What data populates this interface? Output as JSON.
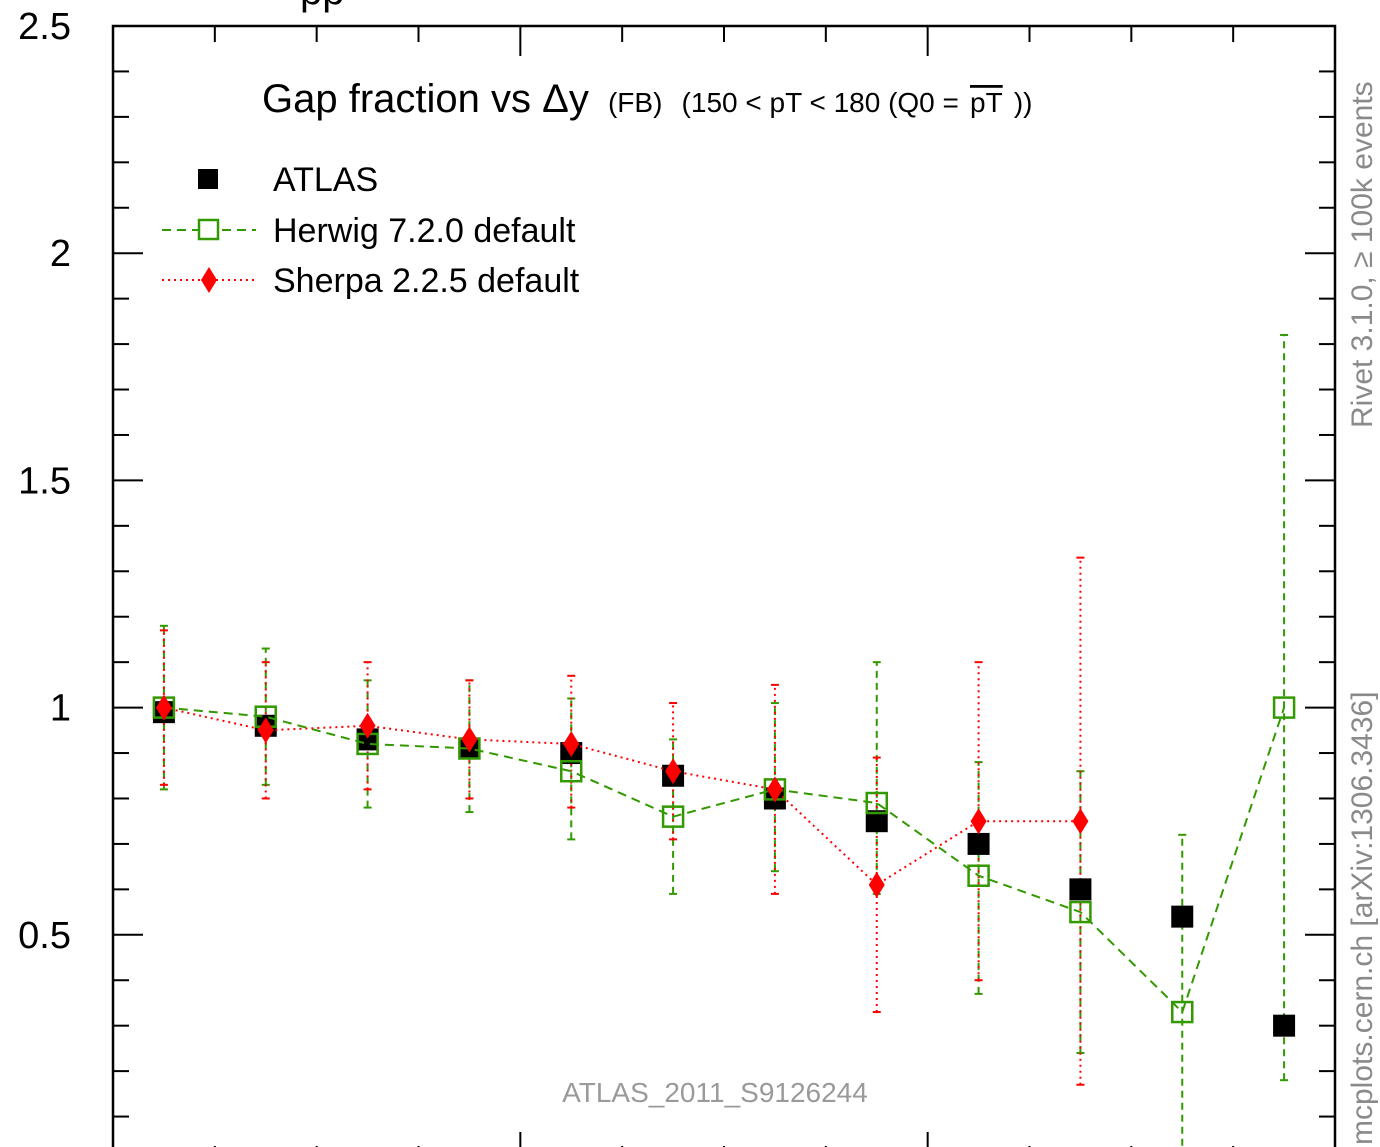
{
  "chart_data": {
    "type": "scatter",
    "title_main": "Gap fraction vs",
    "title_delta": "Δy",
    "title_fb": "(FB)",
    "title_range_open": "(150 < pT < 180 (Q0 =",
    "title_pt": "pT",
    "title_range_close": "))",
    "ylim": [
      0,
      2.5
    ],
    "xlim": [
      0,
      12
    ],
    "y_ticks": [
      0.5,
      1,
      1.5,
      2,
      2.5
    ],
    "y_tick_labels": [
      "0.5",
      "1",
      "1.5",
      "2",
      "2.5"
    ],
    "series": [
      {
        "name": "ATLAS",
        "style": "square-filled",
        "color": "#000000",
        "x": [
          0.5,
          1.5,
          2.5,
          3.5,
          4.5,
          5.5,
          6.5,
          7.5,
          8.5,
          9.5,
          10.5,
          11.5
        ],
        "y": [
          0.99,
          0.96,
          0.93,
          0.91,
          0.9,
          0.85,
          0.8,
          0.75,
          0.7,
          0.6,
          0.54,
          0.3
        ]
      },
      {
        "name": "Herwig 7.2.0 default",
        "style": "square-open-dashed",
        "color": "#339900",
        "x": [
          0.5,
          1.5,
          2.5,
          3.5,
          4.5,
          5.5,
          6.5,
          7.5,
          8.5,
          9.5,
          10.5,
          11.5
        ],
        "y": [
          1.0,
          0.98,
          0.92,
          0.91,
          0.86,
          0.76,
          0.82,
          0.79,
          0.63,
          0.55,
          0.33,
          1.0
        ],
        "err_low": [
          0.18,
          0.15,
          0.14,
          0.14,
          0.15,
          0.17,
          0.18,
          0.2,
          0.26,
          0.31,
          0.4,
          0.82
        ],
        "err_high": [
          0.18,
          0.15,
          0.14,
          0.15,
          0.16,
          0.17,
          0.19,
          0.31,
          0.25,
          0.31,
          0.39,
          0.82
        ]
      },
      {
        "name": "Sherpa 2.2.5 default",
        "style": "diamond-filled-dotted",
        "color": "#ff0000",
        "x": [
          0.5,
          1.5,
          2.5,
          3.5,
          4.5,
          5.5,
          6.5,
          7.5,
          8.5,
          9.5
        ],
        "y": [
          1.0,
          0.95,
          0.96,
          0.93,
          0.92,
          0.86,
          0.82,
          0.61,
          0.75,
          0.75
        ],
        "err_low": [
          0.17,
          0.15,
          0.14,
          0.13,
          0.14,
          0.15,
          0.23,
          0.28,
          0.35,
          0.58
        ],
        "err_high": [
          0.17,
          0.15,
          0.14,
          0.13,
          0.15,
          0.15,
          0.23,
          0.28,
          0.35,
          0.58
        ]
      }
    ]
  },
  "watermark": "ATLAS_2011_S9126244",
  "side_label_top": "Rivet 3.1.0, ≥ 100k events",
  "side_label_bottom": "mcplots.cern.ch [arXiv:1306.3436]",
  "top_cut_text": "pp"
}
